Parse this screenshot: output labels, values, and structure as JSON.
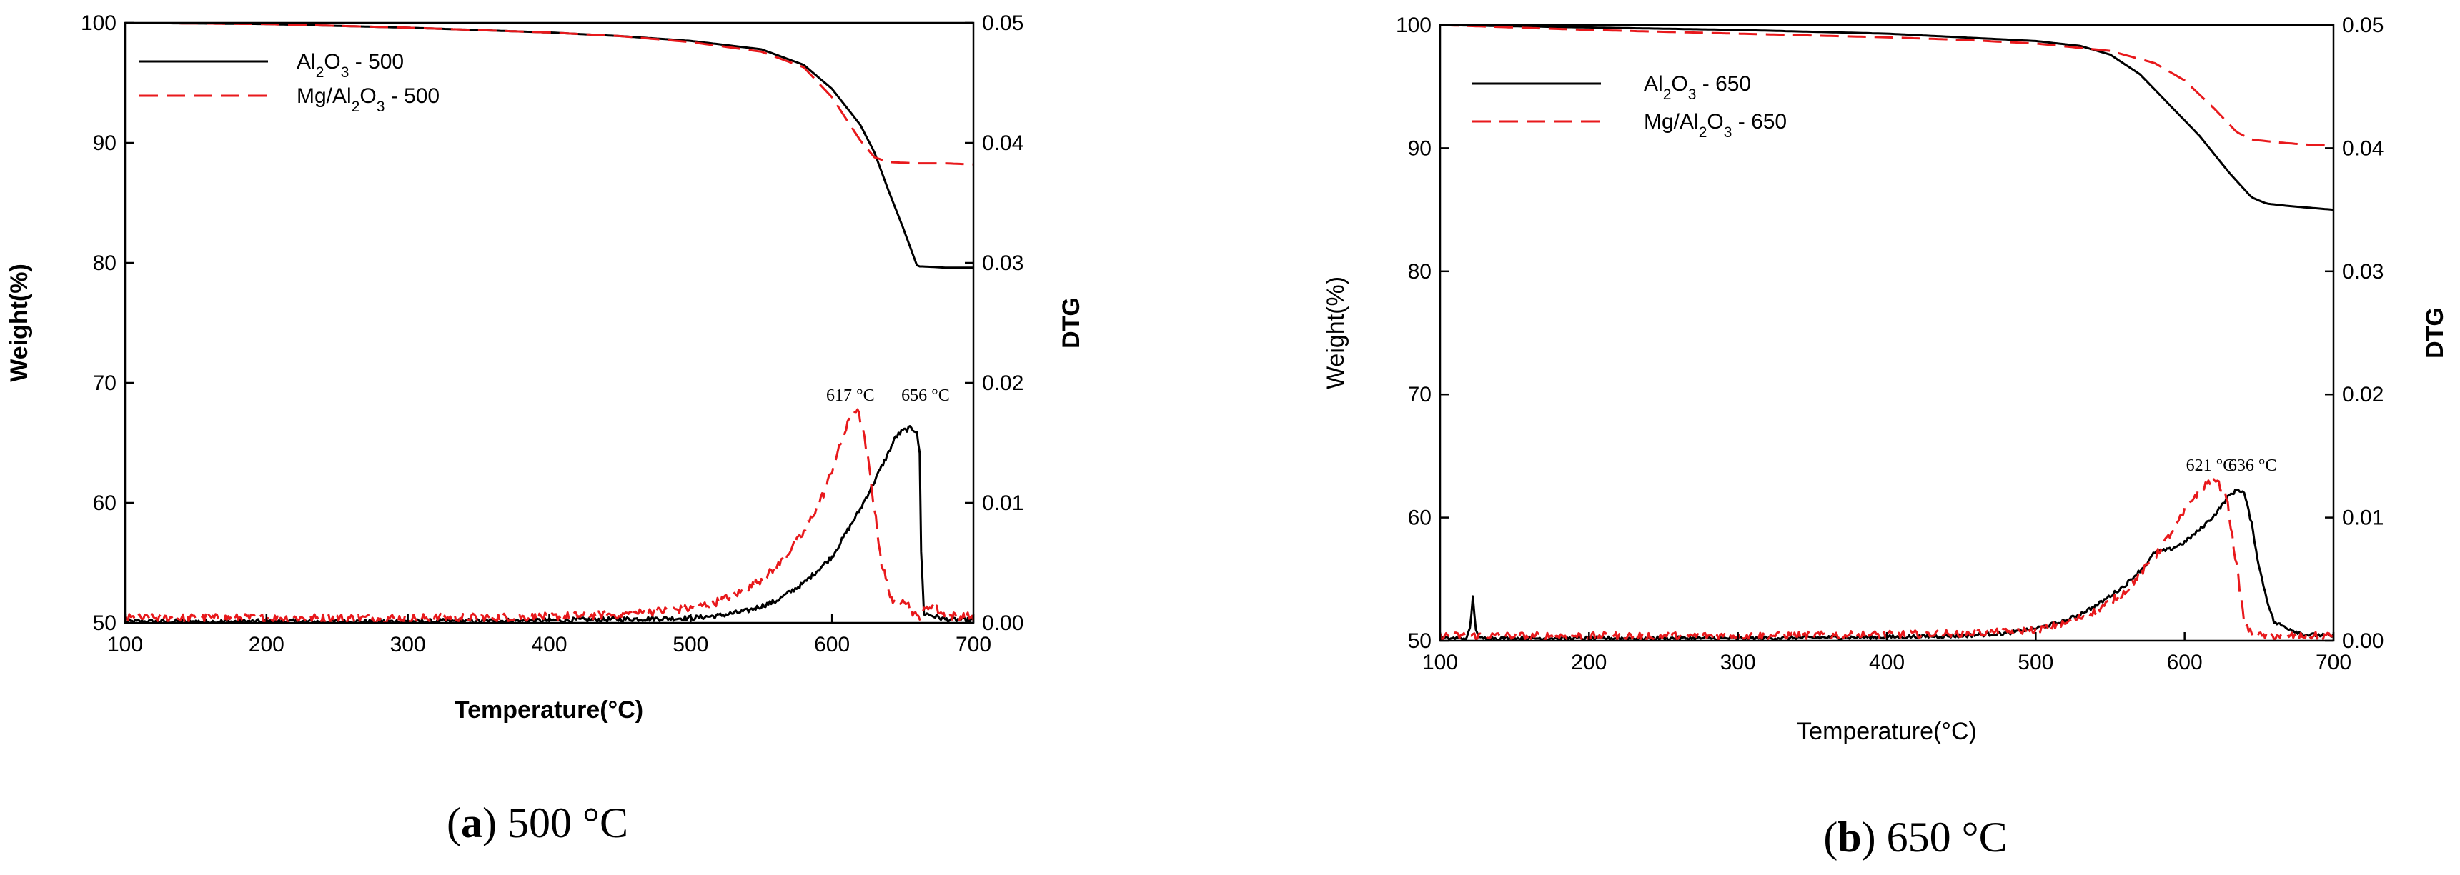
{
  "colors": {
    "black": "#000000",
    "red": "#e8191c"
  },
  "captions": [
    {
      "label": "a",
      "rest": " 500 °C"
    },
    {
      "label": "b",
      "rest": " 650 °C"
    }
  ],
  "chart_data": [
    {
      "type": "line",
      "xlabel": "Temperature(°C)",
      "ylabel": "Weight(%)",
      "y2label": "DTG",
      "xlim": [
        100,
        700
      ],
      "ylim": [
        50,
        100
      ],
      "y2lim": [
        0.0,
        0.05
      ],
      "xticks": [
        "100",
        "200",
        "300",
        "400",
        "500",
        "600",
        "700"
      ],
      "yticks": [
        "50",
        "60",
        "70",
        "80",
        "90",
        "100"
      ],
      "y2ticks": [
        "0.00",
        "0.01",
        "0.02",
        "0.03",
        "0.04",
        "0.05"
      ],
      "legend": [
        {
          "sub": [
            "Al",
            "2",
            "O",
            "3",
            " - 500"
          ],
          "style": "solid",
          "color": "#000000"
        },
        {
          "sub": [
            "Mg/Al",
            "2",
            "O",
            "3",
            " - 500"
          ],
          "style": "dashed",
          "color": "#e8191c"
        }
      ],
      "peak_labels": [
        "617 °C",
        "656 °C"
      ],
      "peak_positions": [
        [
          617,
          0.0185
        ],
        [
          656,
          0.0185
        ]
      ],
      "series": [
        {
          "name": "Al2O3 - 500 weight",
          "axis": "left",
          "color": "#000000",
          "style": "solid",
          "x": [
            100,
            200,
            300,
            400,
            450,
            500,
            550,
            580,
            600,
            620,
            630,
            640,
            650,
            660,
            662,
            665,
            680,
            700
          ],
          "y": [
            100,
            99.9,
            99.6,
            99.2,
            98.9,
            98.5,
            97.8,
            96.5,
            94.5,
            91.5,
            89.2,
            86.0,
            83.0,
            79.8,
            79.7,
            79.7,
            79.6,
            79.6
          ]
        },
        {
          "name": "Mg/Al2O3 - 500 weight",
          "axis": "left",
          "color": "#e8191c",
          "style": "dashed",
          "x": [
            100,
            200,
            300,
            400,
            450,
            500,
            550,
            580,
            600,
            610,
            620,
            630,
            640,
            660,
            680,
            700
          ],
          "y": [
            100,
            99.9,
            99.6,
            99.2,
            98.9,
            98.4,
            97.6,
            96.3,
            93.8,
            92.0,
            90.2,
            88.8,
            88.4,
            88.3,
            88.3,
            88.2
          ],
          "rough": false
        },
        {
          "name": "Al2O3 - 500 DTG",
          "axis": "right",
          "color": "#000000",
          "style": "solid",
          "x": [
            100,
            300,
            400,
            450,
            500,
            520,
            540,
            560,
            580,
            600,
            610,
            620,
            630,
            640,
            645,
            650,
            655,
            660,
            662,
            663,
            665,
            680,
            700
          ],
          "y": [
            0.0001,
            0.0001,
            0.0002,
            0.0003,
            0.0004,
            0.0006,
            0.001,
            0.0018,
            0.0033,
            0.0055,
            0.0075,
            0.0095,
            0.0118,
            0.0142,
            0.0155,
            0.016,
            0.0162,
            0.016,
            0.014,
            0.006,
            0.0008,
            0.0003,
            0.0002
          ],
          "noise": 0.0004
        },
        {
          "name": "Mg/Al2O3 - 500 DTG",
          "axis": "right",
          "color": "#e8191c",
          "style": "dashed",
          "x": [
            100,
            300,
            400,
            450,
            500,
            520,
            540,
            560,
            580,
            595,
            605,
            612,
            617,
            620,
            625,
            630,
            635,
            640,
            645,
            650,
            660,
            670,
            680,
            700
          ],
          "y": [
            0.0004,
            0.0004,
            0.0005,
            0.0007,
            0.0012,
            0.0018,
            0.0028,
            0.0045,
            0.0075,
            0.011,
            0.0145,
            0.0168,
            0.0178,
            0.017,
            0.014,
            0.0095,
            0.005,
            0.0028,
            0.0012,
            0.0022,
            0.0004,
            0.0015,
            0.0006,
            0.0005
          ],
          "noise": 0.0007
        }
      ]
    },
    {
      "type": "line",
      "xlabel": "Temperature(°C)",
      "ylabel": "Weight(%)",
      "y2label": "DTG",
      "xlim": [
        100,
        700
      ],
      "ylim": [
        50,
        100
      ],
      "y2lim": [
        0.0,
        0.05
      ],
      "xticks": [
        "100",
        "200",
        "300",
        "400",
        "500",
        "600",
        "700"
      ],
      "yticks": [
        "50",
        "60",
        "70",
        "80",
        "90",
        "100"
      ],
      "y2ticks": [
        "0.00",
        "0.01",
        "0.02",
        "0.03",
        "0.04",
        "0.05"
      ],
      "legend": [
        {
          "sub": [
            "Al",
            "2",
            "O",
            "3",
            " - 650"
          ],
          "style": "solid",
          "color": "#000000"
        },
        {
          "sub": [
            "Mg/Al",
            "2",
            "O",
            "3",
            " - 650"
          ],
          "style": "dashed",
          "color": "#e8191c"
        }
      ],
      "peak_labels": [
        "621 °C",
        "636 °C"
      ],
      "peak_positions": [
        [
          621,
          0.0138
        ],
        [
          636,
          0.0138
        ]
      ],
      "series": [
        {
          "name": "Al2O3 - 650 weight",
          "axis": "left",
          "color": "#000000",
          "style": "solid",
          "x": [
            100,
            200,
            300,
            400,
            450,
            500,
            530,
            550,
            570,
            590,
            610,
            630,
            645,
            655,
            670,
            700
          ],
          "y": [
            100,
            99.8,
            99.6,
            99.3,
            99.0,
            98.7,
            98.3,
            97.6,
            96.0,
            93.5,
            91.0,
            88.0,
            86.0,
            85.5,
            85.3,
            85.0
          ]
        },
        {
          "name": "Mg/Al2O3 - 650 weight",
          "axis": "left",
          "color": "#e8191c",
          "style": "dashed",
          "x": [
            100,
            200,
            300,
            400,
            450,
            500,
            550,
            580,
            600,
            620,
            635,
            645,
            660,
            680,
            700
          ],
          "y": [
            100,
            99.6,
            99.3,
            99.0,
            98.8,
            98.5,
            97.9,
            96.9,
            95.5,
            93.2,
            91.3,
            90.7,
            90.5,
            90.3,
            90.2
          ]
        },
        {
          "name": "Al2O3 - 650 DTG",
          "axis": "right",
          "color": "#000000",
          "style": "solid",
          "x": [
            100,
            118,
            120,
            122,
            124,
            126,
            200,
            300,
            400,
            450,
            480,
            500,
            520,
            540,
            560,
            575,
            580,
            590,
            600,
            610,
            620,
            630,
            636,
            640,
            645,
            650,
            655,
            660,
            680,
            700
          ],
          "y": [
            0.0002,
            0.0002,
            0.001,
            0.0035,
            0.001,
            0.0002,
            0.0002,
            0.0002,
            0.0003,
            0.0004,
            0.0006,
            0.001,
            0.0016,
            0.0028,
            0.0045,
            0.0063,
            0.0072,
            0.0074,
            0.008,
            0.009,
            0.0102,
            0.0118,
            0.0123,
            0.012,
            0.0095,
            0.006,
            0.0035,
            0.0015,
            0.0005,
            0.0004
          ],
          "noise": 0.0003
        },
        {
          "name": "Mg/Al2O3 - 650 DTG",
          "axis": "right",
          "color": "#e8191c",
          "style": "dashed",
          "x": [
            100,
            300,
            400,
            450,
            480,
            500,
            520,
            540,
            560,
            580,
            595,
            605,
            615,
            621,
            628,
            635,
            640,
            645,
            650,
            660,
            680,
            700
          ],
          "y": [
            0.0004,
            0.0004,
            0.0005,
            0.0006,
            0.0007,
            0.0009,
            0.0014,
            0.0024,
            0.004,
            0.0068,
            0.0095,
            0.0115,
            0.0128,
            0.013,
            0.0118,
            0.006,
            0.0015,
            0.0005,
            0.0004,
            0.0004,
            0.0004,
            0.0004
          ],
          "noise": 0.0006
        }
      ]
    }
  ]
}
